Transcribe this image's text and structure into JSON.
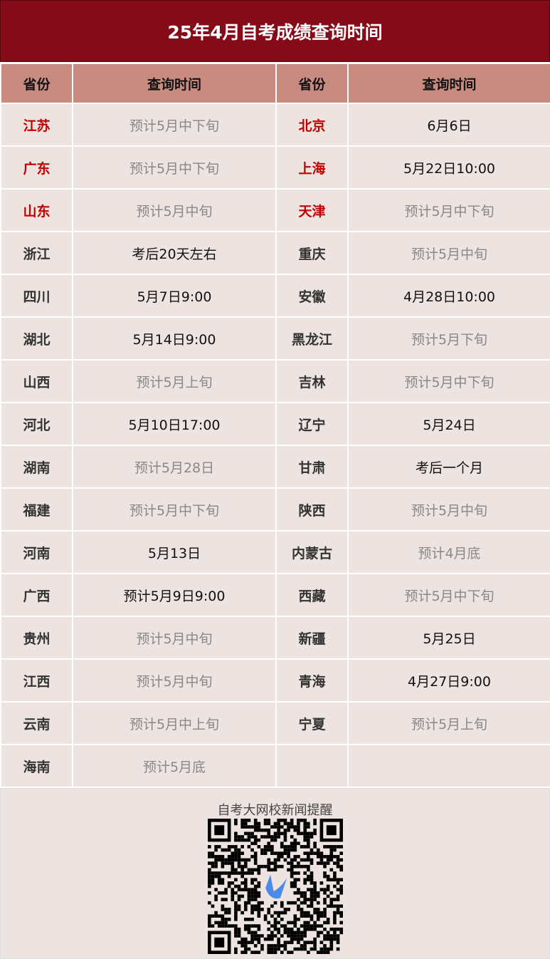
{
  "title": "25年4月自考成绩查询时间",
  "headers": [
    "省份",
    "查询时间",
    "省份",
    "查询时间"
  ],
  "rows": [
    [
      {
        "p": "江苏",
        "red": true,
        "t": "预计5月中下旬",
        "est": true
      },
      {
        "p": "北京",
        "red": true,
        "t": "6月6日",
        "est": false
      }
    ],
    [
      {
        "p": "广东",
        "red": true,
        "t": "预计5月中下旬",
        "est": true
      },
      {
        "p": "上海",
        "red": true,
        "t": "5月22日10:00",
        "est": false
      }
    ],
    [
      {
        "p": "山东",
        "red": true,
        "t": "预计5月中旬",
        "est": true
      },
      {
        "p": "天津",
        "red": true,
        "t": "预计5月中下旬",
        "est": true
      }
    ],
    [
      {
        "p": "浙江",
        "t": "考后20天左右",
        "est": false
      },
      {
        "p": "重庆",
        "t": "预计5月中旬",
        "est": true
      }
    ],
    [
      {
        "p": "四川",
        "t": "5月7日9:00",
        "est": false
      },
      {
        "p": "安徽",
        "t": "4月28日10:00",
        "est": false
      }
    ],
    [
      {
        "p": "湖北",
        "t": "5月14日9:00",
        "est": false
      },
      {
        "p": "黑龙江",
        "t": "预计5月下旬",
        "est": true
      }
    ],
    [
      {
        "p": "山西",
        "t": "预计5月上旬",
        "est": true
      },
      {
        "p": "吉林",
        "t": "预计5月中下旬",
        "est": true
      }
    ],
    [
      {
        "p": "河北",
        "t": "5月10日17:00",
        "est": false
      },
      {
        "p": "辽宁",
        "t": "5月24日",
        "est": false
      }
    ],
    [
      {
        "p": "湖南",
        "t": "预计5月28日",
        "est": true
      },
      {
        "p": "甘肃",
        "t": "考后一个月",
        "est": false
      }
    ],
    [
      {
        "p": "福建",
        "t": "预计5月中下旬",
        "est": true
      },
      {
        "p": "陕西",
        "t": "预计5月中旬",
        "est": true
      }
    ],
    [
      {
        "p": "河南",
        "t": "5月13日",
        "est": false
      },
      {
        "p": "内蒙古",
        "t": "预计4月底",
        "est": true
      }
    ],
    [
      {
        "p": "广西",
        "t": "预计5月9日9:00",
        "est": false
      },
      {
        "p": "西藏",
        "t": "预计5月中下旬",
        "est": true
      }
    ],
    [
      {
        "p": "贵州",
        "t": "预计5月中旬",
        "est": true
      },
      {
        "p": "新疆",
        "t": "5月25日",
        "est": false
      }
    ],
    [
      {
        "p": "江西",
        "t": "预计5月中旬",
        "est": true
      },
      {
        "p": "青海",
        "t": "4月27日9:00",
        "est": false
      }
    ],
    [
      {
        "p": "云南",
        "t": "预计5月中上旬",
        "est": true
      },
      {
        "p": "宁夏",
        "t": "预计5月上旬",
        "est": true
      }
    ],
    [
      {
        "p": "海南",
        "t": "预计5月底",
        "est": true
      },
      {
        "p": "",
        "t": ""
      }
    ]
  ],
  "footer": {
    "caption": "自考大网校新闻提醒",
    "qr_logo_color": "#4a8be8"
  },
  "colors": {
    "title_bg": "#850b19",
    "header_bg": "#c98b80",
    "row_bg": "#ede3e0",
    "highlight": "#c00000",
    "estimate_text": "#888888"
  }
}
